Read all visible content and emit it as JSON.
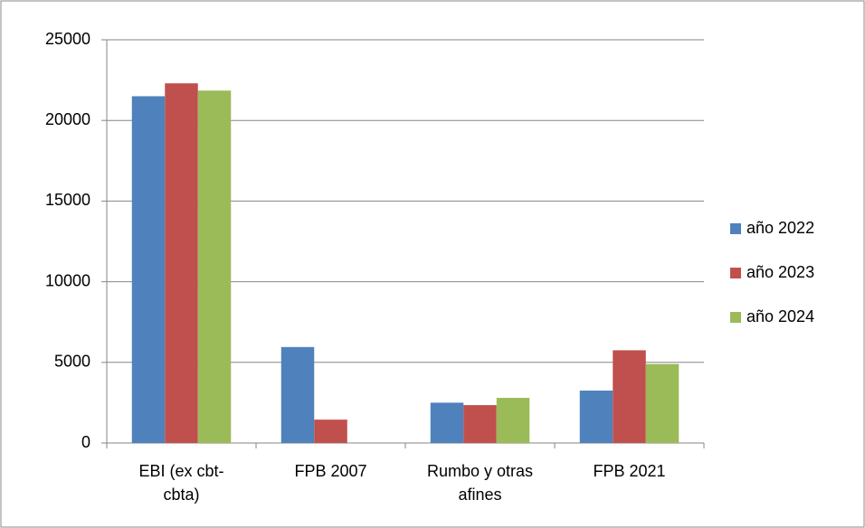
{
  "chart_data": {
    "type": "bar",
    "categories": [
      "EBI (ex cbt-cbta)",
      "FPB 2007",
      "Rumbo y otras afines",
      "FPB 2021"
    ],
    "series": [
      {
        "name": "año 2022",
        "color": "#4f81bd",
        "values": [
          21500,
          5950,
          2500,
          3250
        ]
      },
      {
        "name": "año 2023",
        "color": "#c0504d",
        "values": [
          22300,
          1450,
          2350,
          5750
        ]
      },
      {
        "name": "año 2024",
        "color": "#9bbb59",
        "values": [
          21850,
          0,
          2800,
          4900
        ]
      }
    ],
    "ylim": [
      0,
      25000
    ],
    "yticks": [
      0,
      5000,
      10000,
      15000,
      20000,
      25000
    ],
    "grid": true,
    "legend": "right"
  }
}
